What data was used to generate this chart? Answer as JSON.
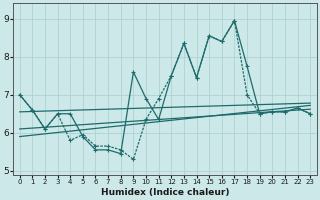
{
  "xlabel": "Humidex (Indice chaleur)",
  "xlim": [
    -0.5,
    23.5
  ],
  "ylim": [
    4.9,
    9.4
  ],
  "yticks": [
    5,
    6,
    7,
    8,
    9
  ],
  "xticks": [
    0,
    1,
    2,
    3,
    4,
    5,
    6,
    7,
    8,
    9,
    10,
    11,
    12,
    13,
    14,
    15,
    16,
    17,
    18,
    19,
    20,
    21,
    22,
    23
  ],
  "bg_color": "#cce8e8",
  "line_color": "#1e6b6b",
  "grid_color": "#aacece",
  "series1_x": [
    0,
    1,
    2,
    3,
    4,
    5,
    6,
    7,
    8,
    9,
    10,
    11,
    12,
    13,
    14,
    15,
    16,
    17,
    18,
    19,
    20,
    21,
    22,
    23
  ],
  "series1_y": [
    7.0,
    6.6,
    6.1,
    6.5,
    6.5,
    5.9,
    5.55,
    5.55,
    5.45,
    7.6,
    6.9,
    6.35,
    7.5,
    8.35,
    7.45,
    8.55,
    8.4,
    8.95,
    7.75,
    6.5,
    6.55,
    6.55,
    6.65,
    6.5
  ],
  "series2_x": [
    0,
    1,
    2,
    3,
    4,
    5,
    6,
    7,
    8,
    9,
    10,
    11,
    12,
    13,
    14,
    15,
    16,
    17,
    18,
    19,
    20,
    21,
    22,
    23
  ],
  "series2_y": [
    7.0,
    6.6,
    6.1,
    6.5,
    5.8,
    5.95,
    5.65,
    5.65,
    5.55,
    5.3,
    6.35,
    6.9,
    7.5,
    8.35,
    7.45,
    8.55,
    8.4,
    8.95,
    7.0,
    6.5,
    6.55,
    6.55,
    6.65,
    6.5
  ],
  "trend1_x": [
    0,
    23
  ],
  "trend1_y": [
    6.55,
    6.78
  ],
  "trend2_x": [
    0,
    23
  ],
  "trend2_y": [
    6.1,
    6.62
  ],
  "trend3_x": [
    0,
    23
  ],
  "trend3_y": [
    5.9,
    6.72
  ]
}
